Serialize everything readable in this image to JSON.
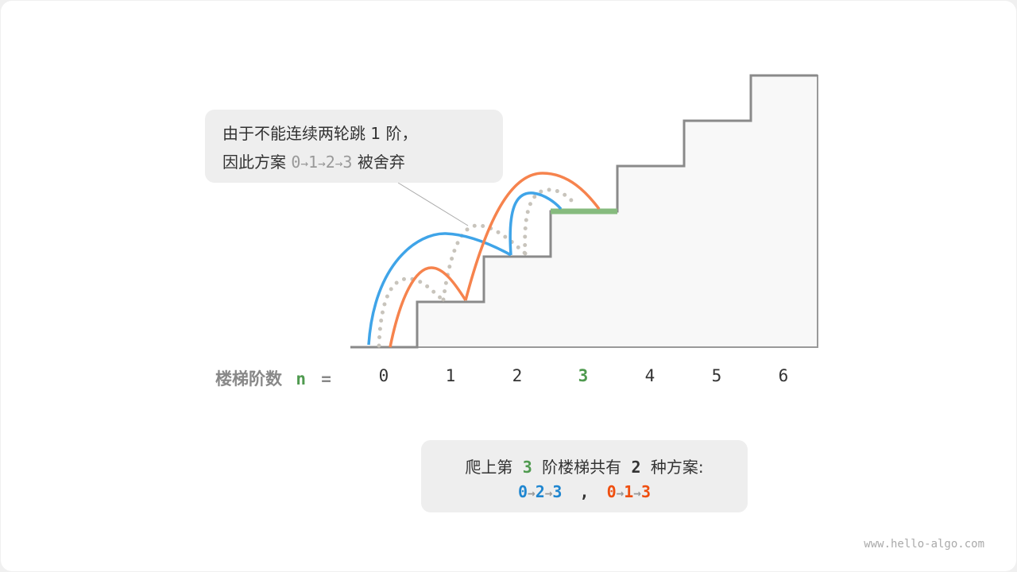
{
  "callout_top": {
    "line1": "由于不能连续两轮跳 1 阶，",
    "line2_prefix": "因此方案",
    "path": [
      "0",
      "1",
      "2",
      "3"
    ],
    "line2_suffix": "被舍弃"
  },
  "axis": {
    "label": "楼梯阶数",
    "var": "n",
    "eq": "=",
    "steps": [
      "0",
      "1",
      "2",
      "3",
      "4",
      "5",
      "6"
    ]
  },
  "callout_bottom": {
    "p1": "爬上第",
    "n": "3",
    "p2": "阶楼梯共有",
    "count": "2",
    "p3": "种方案:",
    "path_a": [
      "0",
      "2",
      "3"
    ],
    "sep": ",",
    "path_b": [
      "0",
      "1",
      "3"
    ]
  },
  "colors": {
    "blue": "#3fa4e8",
    "orange": "#f6834d",
    "green": "#4f9a4f",
    "highlight": "#86bb7e",
    "path_a": "#1f86d0",
    "path_b": "#ef4f10"
  },
  "watermark": "www.hello-algo.com"
}
